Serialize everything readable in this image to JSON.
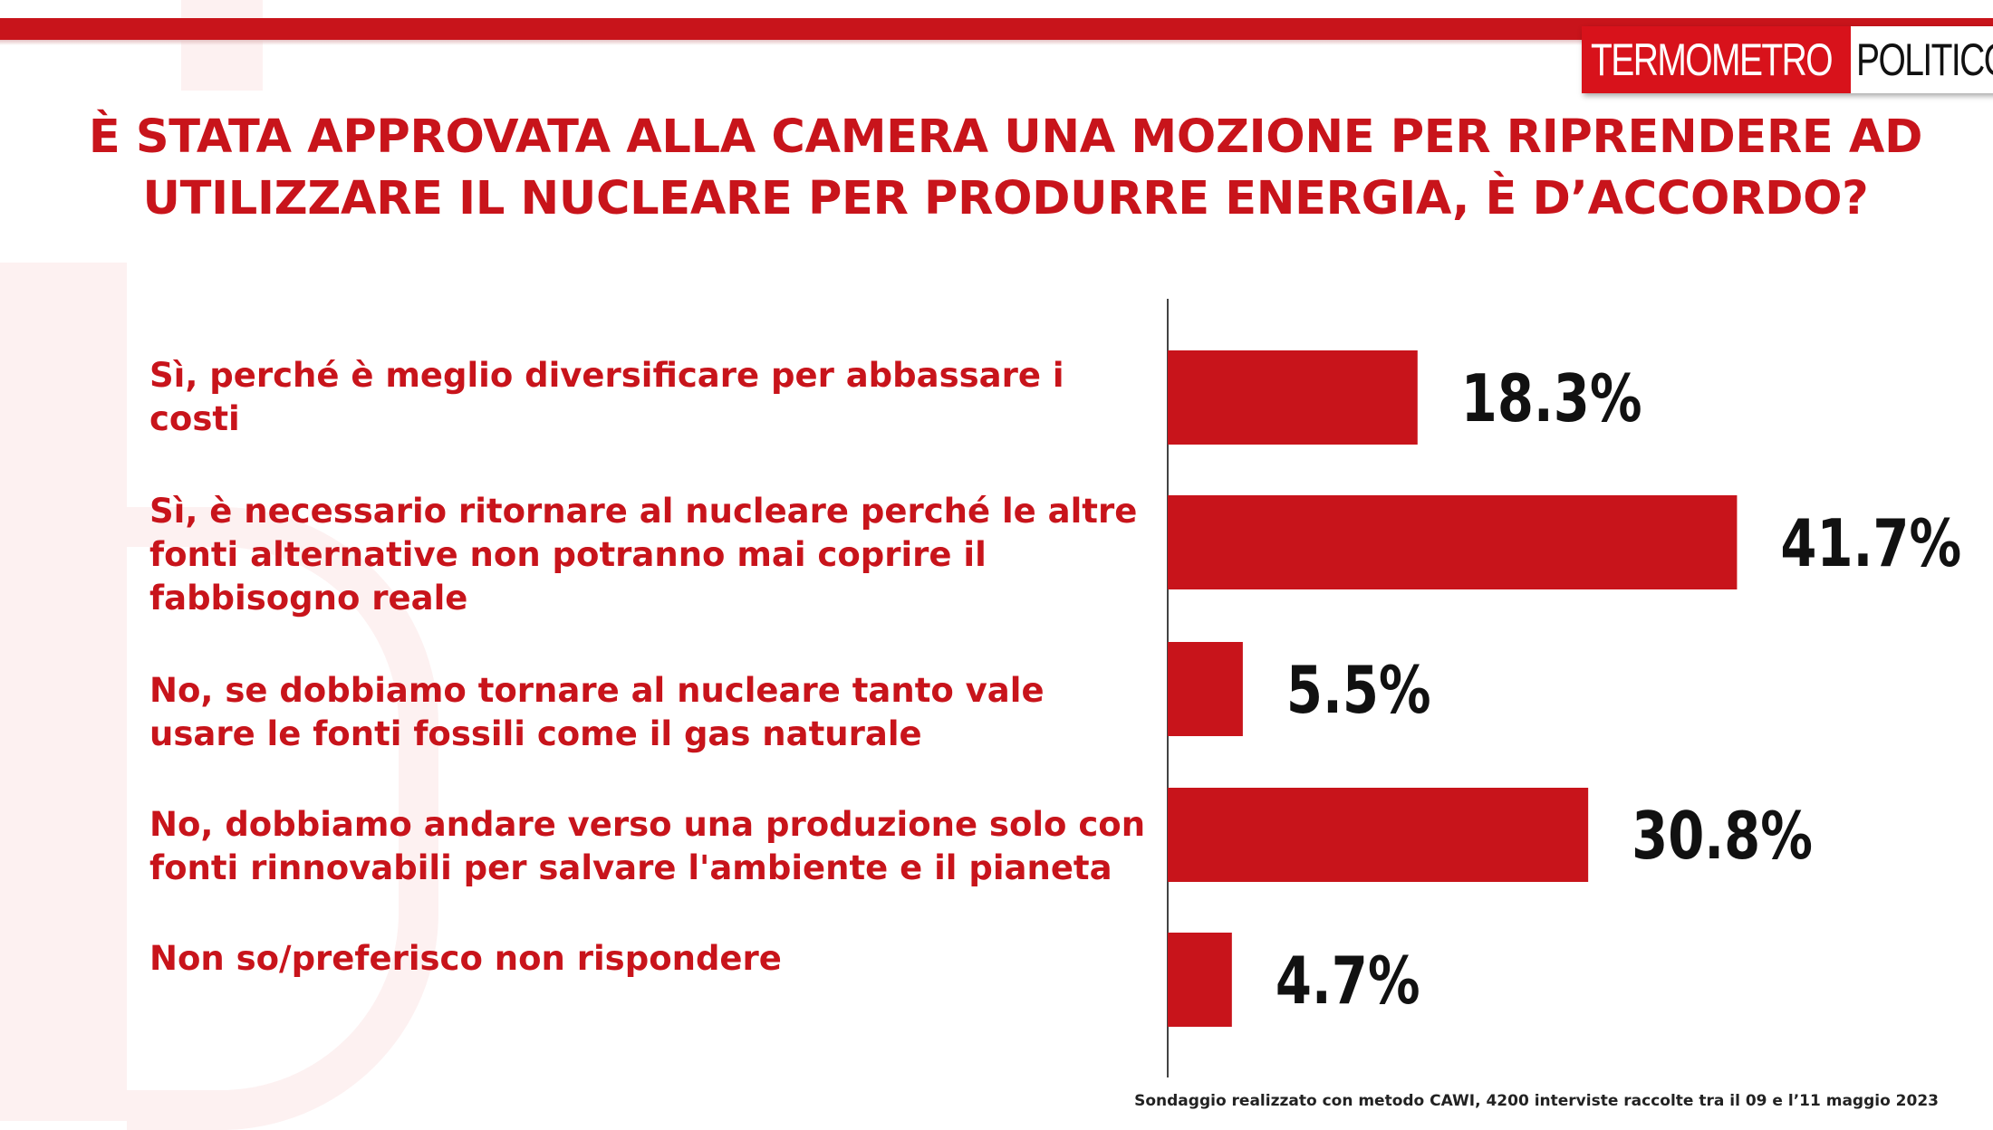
{
  "brand": {
    "logo_left": "TERMOMETRO",
    "logo_right": "POLITICO",
    "accent_color": "#c8141b"
  },
  "title_line1": "È STATA APPROVATA ALLA CAMERA UNA MOZIONE PER RIPRENDERE AD",
  "title_line2": "UTILIZZARE IL NUCLEARE PER PRODURRE ENERGIA, È D’ACCORDO?",
  "answers": [
    {
      "lines": [
        "Sì, perché è meglio diversificare per abbassare i",
        "costi"
      ]
    },
    {
      "lines": [
        "Sì, è necessario ritornare al nucleare perché le altre",
        "fonti alternative non potranno mai coprire il",
        "fabbisogno reale"
      ]
    },
    {
      "lines": [
        "No, se dobbiamo tornare al nucleare tanto vale",
        "usare le fonti fossili come il gas naturale"
      ]
    },
    {
      "lines": [
        "No, dobbiamo andare verso una produzione solo con",
        "fonti rinnovabili per salvare l'ambiente e il pianeta"
      ]
    },
    {
      "lines": [
        "Non so/preferisco non rispondere"
      ]
    }
  ],
  "chart_data": {
    "type": "bar",
    "orientation": "horizontal",
    "categories": [
      "Sì, perché è meglio diversificare per abbassare i costi",
      "Sì, è necessario ritornare al nucleare perché le altre fonti alternative non potranno mai coprire il fabbisogno reale",
      "No, se dobbiamo tornare al nucleare tanto vale usare le fonti fossili come il gas naturale",
      "No, dobbiamo andare verso una produzione solo con fonti rinnovabili per salvare l'ambiente e il pianeta",
      "Non so/preferisco non rispondere"
    ],
    "values": [
      18.3,
      41.7,
      5.5,
      30.8,
      4.7
    ],
    "value_labels": [
      "18.3%",
      "41.7%",
      "5.5%",
      "30.8%",
      "4.7%"
    ],
    "bar_color": "#c8141b",
    "grid": false,
    "legend": "none"
  },
  "footnote": "Sondaggio realizzato con metodo CAWI, 4200 interviste raccolte tra il 09 e l’11 maggio 2023"
}
